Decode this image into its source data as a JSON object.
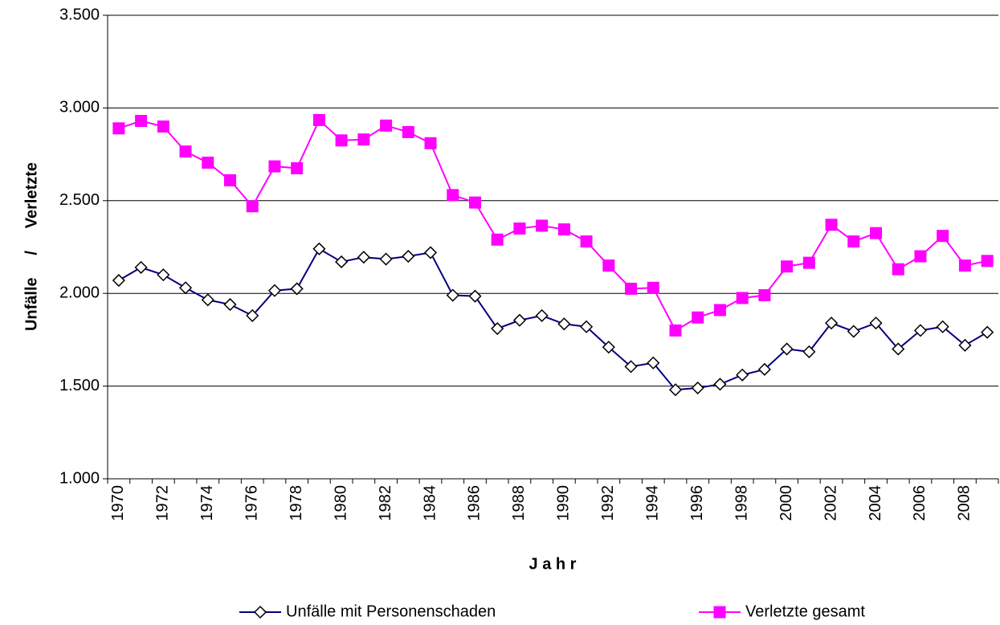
{
  "chart_data": {
    "type": "line",
    "y_label": "Unfälle     /     Verletzte",
    "x_label": "J a h r",
    "categories": [
      "1970",
      null,
      "1972",
      null,
      "1974",
      null,
      "1976",
      null,
      "1978",
      null,
      "1980",
      null,
      "1982",
      null,
      "1984",
      null,
      "1986",
      null,
      "1988",
      null,
      "1990",
      null,
      "1992",
      null,
      "1994",
      null,
      "1996",
      null,
      "1998",
      null,
      "2000",
      null,
      "2002",
      null,
      "2004",
      null,
      "2006",
      null,
      "2008",
      null
    ],
    "series": [
      {
        "name": "Unfälle mit Personenschaden",
        "color": "#000080",
        "marker": "diamond",
        "values": [
          2070,
          2140,
          2100,
          2030,
          1965,
          1940,
          1880,
          2015,
          2025,
          2240,
          2170,
          2195,
          2185,
          2200,
          2220,
          1990,
          1985,
          1810,
          1855,
          1880,
          1835,
          1820,
          1710,
          1605,
          1625,
          1480,
          1490,
          1510,
          1560,
          1590,
          1700,
          1685,
          1840,
          1795,
          1840,
          1700,
          1800,
          1820,
          1720,
          1790
        ]
      },
      {
        "name": "Verletzte gesamt",
        "color": "#ff00ff",
        "marker": "square",
        "values": [
          2890,
          2930,
          2900,
          2765,
          2705,
          2610,
          2470,
          2685,
          2675,
          2935,
          2825,
          2830,
          2905,
          2870,
          2810,
          2530,
          2490,
          2290,
          2350,
          2365,
          2345,
          2280,
          2150,
          2025,
          2030,
          1800,
          1870,
          1910,
          1975,
          1990,
          2145,
          2165,
          2370,
          2280,
          2325,
          2130,
          2200,
          2310,
          2150,
          2175
        ]
      }
    ],
    "ylim": [
      1000,
      3500
    ],
    "yticks": [
      {
        "value": 1000,
        "label": "1.000"
      },
      {
        "value": 1500,
        "label": "1.500"
      },
      {
        "value": 2000,
        "label": "2.000"
      },
      {
        "value": 2500,
        "label": "2.500"
      },
      {
        "value": 3000,
        "label": "3.000"
      },
      {
        "value": 3500,
        "label": "3.500"
      }
    ],
    "grid": true
  }
}
